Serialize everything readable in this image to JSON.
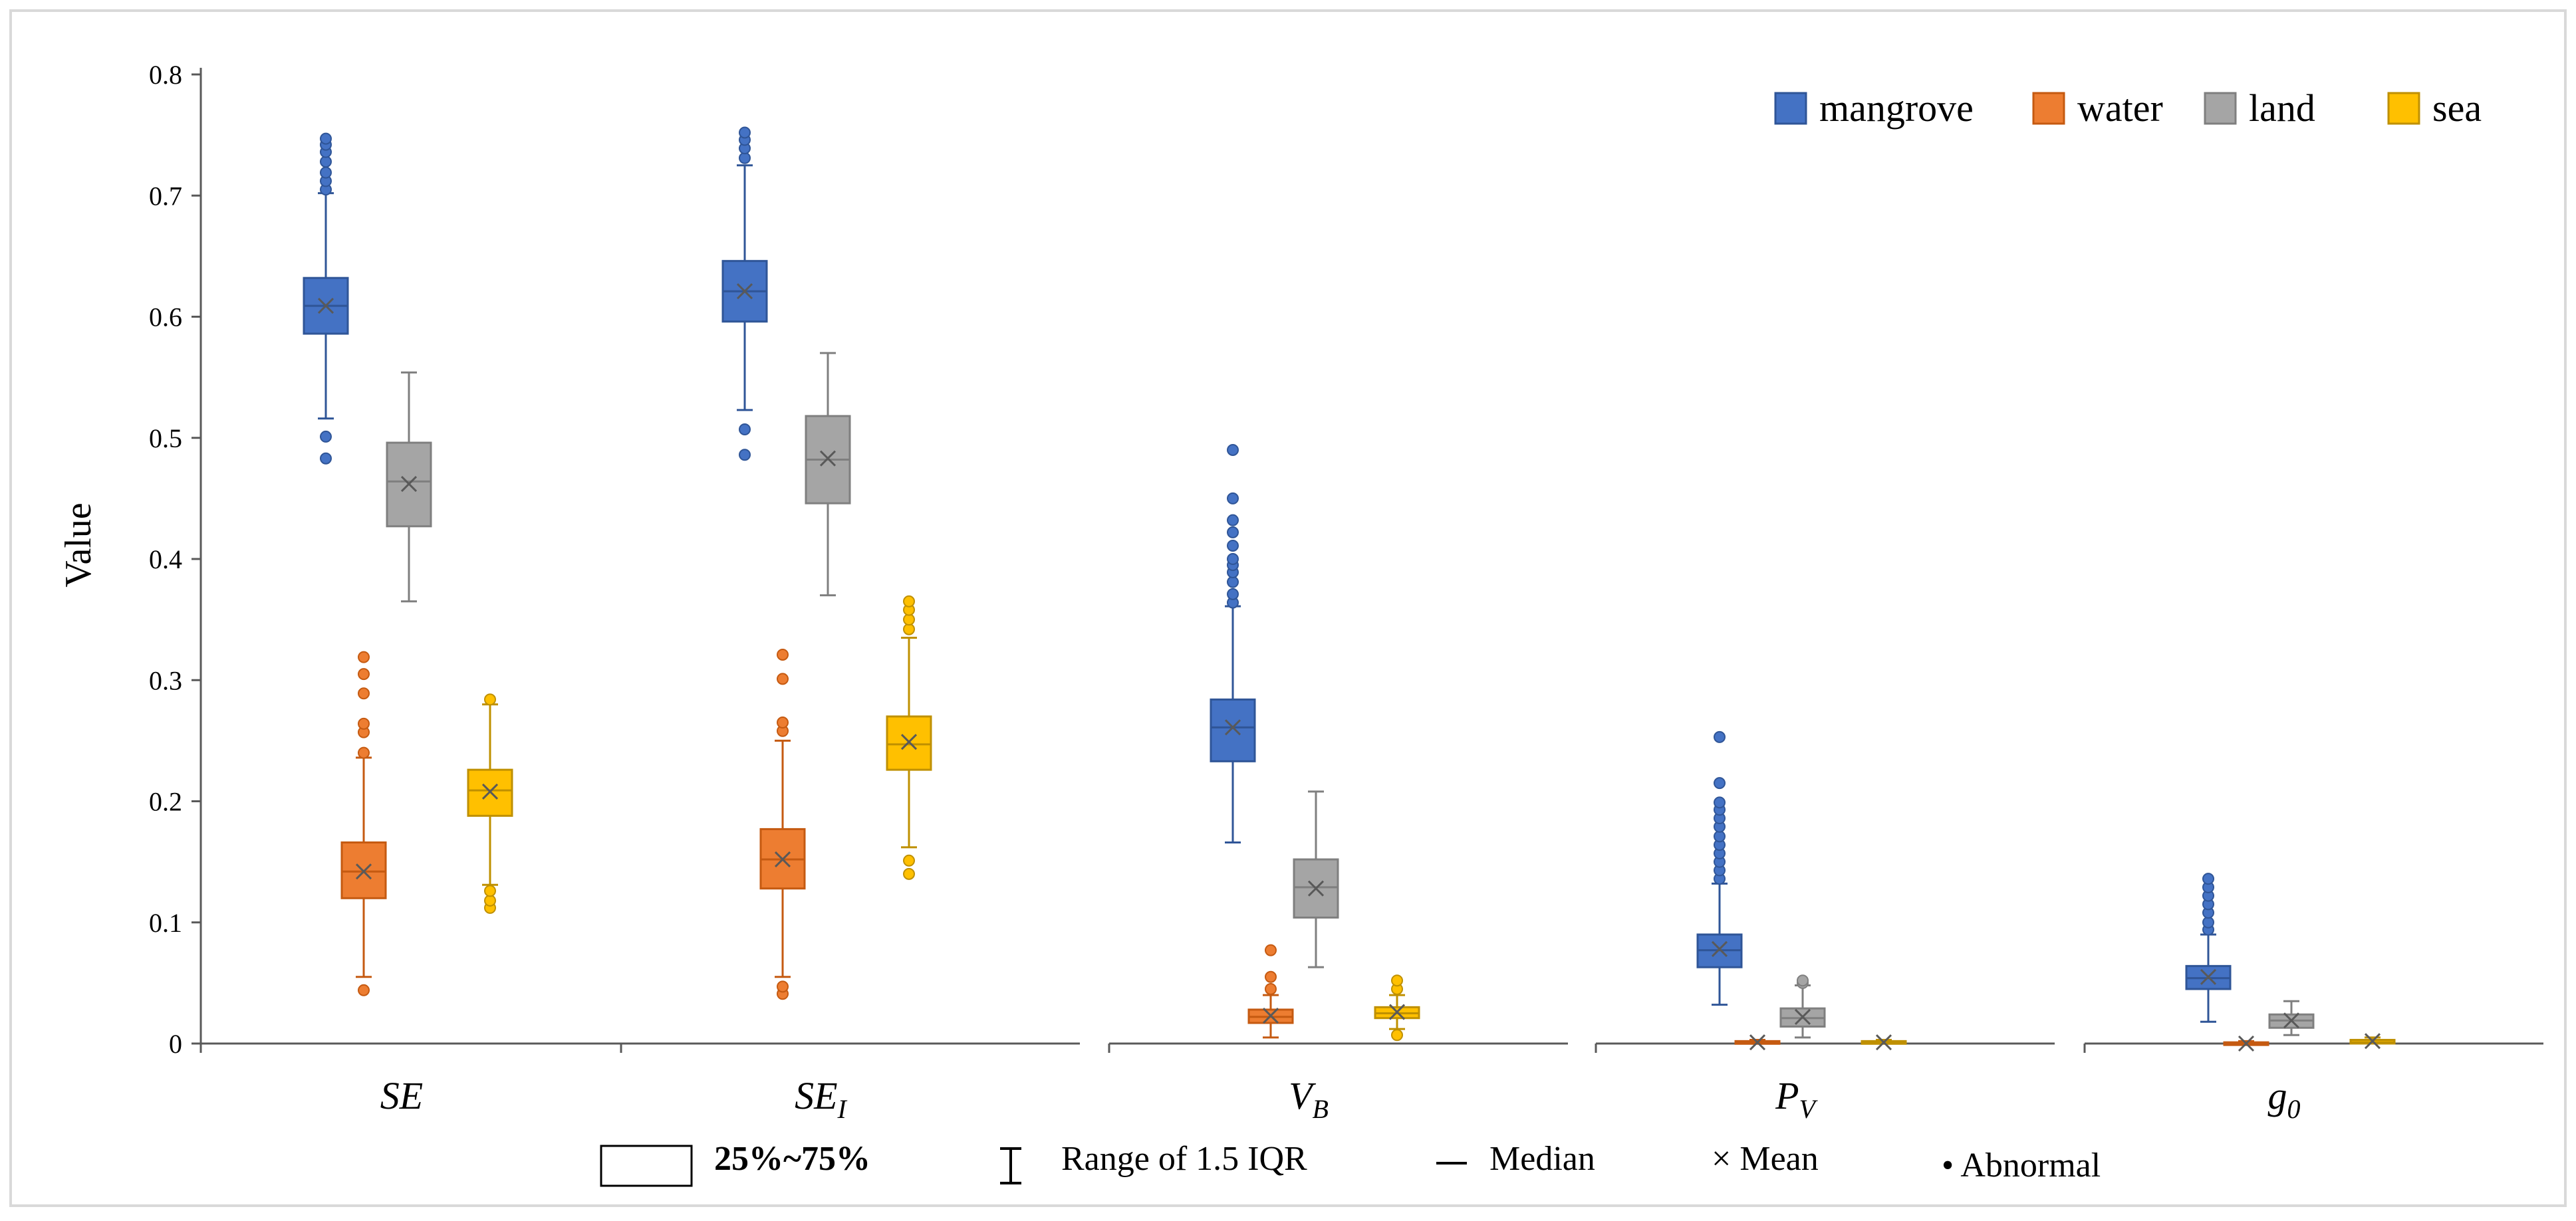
{
  "chart_data": {
    "type": "box",
    "title": "",
    "xlabel": "",
    "ylabel": "Value",
    "ylim": [
      0,
      0.8
    ],
    "yticks": [
      "0",
      "0.1",
      "0.2",
      "0.3",
      "0.4",
      "0.5",
      "0.6",
      "0.7",
      "0.8"
    ],
    "grid": false,
    "legend_position": "top-right",
    "categories": [
      {
        "id": "SE",
        "main": "SE",
        "sub": ""
      },
      {
        "id": "SEI",
        "main": "SE",
        "sub": "I"
      },
      {
        "id": "VB",
        "main": "V",
        "sub": "B"
      },
      {
        "id": "PV",
        "main": "P",
        "sub": "V"
      },
      {
        "id": "g0",
        "main": "g",
        "sub": "0"
      }
    ],
    "series": [
      {
        "name": "mangrove",
        "color": "#4472C4",
        "stroke": "#2F5597",
        "boxes": [
          {
            "q1": 0.586,
            "median": 0.609,
            "q3": 0.632,
            "mean": 0.609,
            "whisker_low": 0.516,
            "whisker_high": 0.702,
            "outliers": [
              0.483,
              0.501,
              0.705,
              0.712,
              0.719,
              0.728,
              0.736,
              0.742,
              0.747
            ]
          },
          {
            "q1": 0.596,
            "median": 0.621,
            "q3": 0.646,
            "mean": 0.621,
            "whisker_low": 0.523,
            "whisker_high": 0.725,
            "outliers": [
              0.486,
              0.507,
              0.731,
              0.739,
              0.746,
              0.752
            ]
          },
          {
            "q1": 0.233,
            "median": 0.261,
            "q3": 0.284,
            "mean": 0.261,
            "whisker_low": 0.166,
            "whisker_high": 0.361,
            "outliers": [
              0.364,
              0.371,
              0.381,
              0.389,
              0.395,
              0.4,
              0.411,
              0.422,
              0.432,
              0.45,
              0.49
            ]
          },
          {
            "q1": 0.063,
            "median": 0.077,
            "q3": 0.09,
            "mean": 0.078,
            "whisker_low": 0.032,
            "whisker_high": 0.132,
            "outliers": [
              0.136,
              0.143,
              0.15,
              0.157,
              0.164,
              0.171,
              0.179,
              0.186,
              0.193,
              0.199,
              0.215,
              0.253
            ]
          },
          {
            "q1": 0.045,
            "median": 0.054,
            "q3": 0.064,
            "mean": 0.055,
            "whisker_low": 0.018,
            "whisker_high": 0.09,
            "outliers": [
              0.094,
              0.1,
              0.108,
              0.115,
              0.122,
              0.129,
              0.136
            ]
          }
        ]
      },
      {
        "name": "water",
        "color": "#ED7D31",
        "stroke": "#C55A11",
        "boxes": [
          {
            "q1": 0.12,
            "median": 0.142,
            "q3": 0.166,
            "mean": 0.142,
            "whisker_low": 0.055,
            "whisker_high": 0.236,
            "outliers": [
              0.044,
              0.24,
              0.257,
              0.264,
              0.289,
              0.305,
              0.319
            ]
          },
          {
            "q1": 0.128,
            "median": 0.152,
            "q3": 0.177,
            "mean": 0.152,
            "whisker_low": 0.055,
            "whisker_high": 0.25,
            "outliers": [
              0.041,
              0.047,
              0.258,
              0.265,
              0.301,
              0.321
            ]
          },
          {
            "q1": 0.017,
            "median": 0.022,
            "q3": 0.028,
            "mean": 0.023,
            "whisker_low": 0.005,
            "whisker_high": 0.04,
            "outliers": [
              0.045,
              0.055,
              0.077
            ]
          },
          {
            "q1": 0.0,
            "median": 0.001,
            "q3": 0.002,
            "mean": 0.001,
            "whisker_low": 0.0,
            "whisker_high": 0.003,
            "outliers": []
          },
          {
            "q1": 0.0,
            "median": 0.0,
            "q3": 0.001,
            "mean": 0.0,
            "whisker_low": 0.0,
            "whisker_high": 0.002,
            "outliers": []
          }
        ]
      },
      {
        "name": "land",
        "color": "#A5A5A5",
        "stroke": "#7F7F7F",
        "boxes": [
          {
            "q1": 0.427,
            "median": 0.464,
            "q3": 0.496,
            "mean": 0.462,
            "whisker_low": 0.365,
            "whisker_high": 0.554,
            "outliers": []
          },
          {
            "q1": 0.446,
            "median": 0.482,
            "q3": 0.518,
            "mean": 0.483,
            "whisker_low": 0.37,
            "whisker_high": 0.57,
            "outliers": []
          },
          {
            "q1": 0.104,
            "median": 0.129,
            "q3": 0.152,
            "mean": 0.128,
            "whisker_low": 0.063,
            "whisker_high": 0.208,
            "outliers": []
          },
          {
            "q1": 0.014,
            "median": 0.021,
            "q3": 0.029,
            "mean": 0.022,
            "whisker_low": 0.005,
            "whisker_high": 0.048,
            "outliers": [
              0.05,
              0.052
            ]
          },
          {
            "q1": 0.013,
            "median": 0.019,
            "q3": 0.024,
            "mean": 0.019,
            "whisker_low": 0.007,
            "whisker_high": 0.035,
            "outliers": []
          }
        ]
      },
      {
        "name": "sea",
        "color": "#FFC000",
        "stroke": "#BF9000",
        "boxes": [
          {
            "q1": 0.188,
            "median": 0.209,
            "q3": 0.226,
            "mean": 0.208,
            "whisker_low": 0.131,
            "whisker_high": 0.28,
            "outliers": [
              0.112,
              0.118,
              0.126,
              0.284
            ]
          },
          {
            "q1": 0.226,
            "median": 0.247,
            "q3": 0.27,
            "mean": 0.249,
            "whisker_low": 0.162,
            "whisker_high": 0.335,
            "outliers": [
              0.14,
              0.151,
              0.342,
              0.35,
              0.358,
              0.365
            ]
          },
          {
            "q1": 0.021,
            "median": 0.025,
            "q3": 0.03,
            "mean": 0.026,
            "whisker_low": 0.012,
            "whisker_high": 0.04,
            "outliers": [
              0.007,
              0.045,
              0.052
            ]
          },
          {
            "q1": 0.0,
            "median": 0.001,
            "q3": 0.002,
            "mean": 0.001,
            "whisker_low": 0.0,
            "whisker_high": 0.003,
            "outliers": []
          },
          {
            "q1": 0.0,
            "median": 0.001,
            "q3": 0.003,
            "mean": 0.002,
            "whisker_low": 0.0,
            "whisker_high": 0.005,
            "outliers": []
          }
        ]
      }
    ],
    "key": {
      "box_label": "25%~75%",
      "whisker_label": "Range of 1.5 IQR",
      "median_label": "Median",
      "mean_symbol": "×",
      "mean_label": "Mean",
      "outlier_symbol": "•",
      "outlier_label": "Abnormal"
    }
  }
}
